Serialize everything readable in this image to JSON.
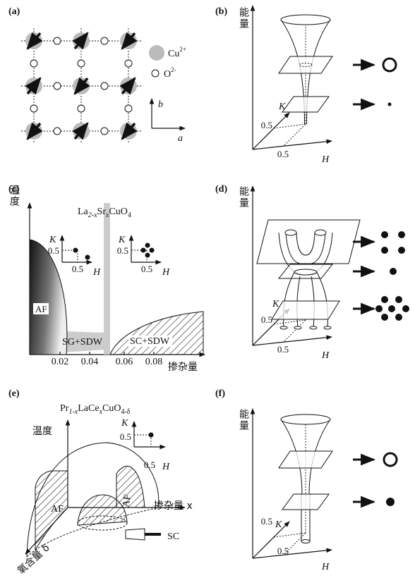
{
  "panels": {
    "a": {
      "label": "(a)",
      "cu": [
        "Cu",
        "2+"
      ],
      "o": [
        "O",
        "2-"
      ],
      "axis_b": "b",
      "axis_a": "a"
    },
    "b": {
      "label": "(b)",
      "energy": "能量",
      "k": "K",
      "k_tick": "0.5",
      "h_tick": "0.5",
      "h": "H"
    },
    "c": {
      "label": "(c)",
      "y_axis": "温度",
      "formula": [
        "La",
        "2-x",
        "Sr",
        "x",
        "CuO",
        "4"
      ],
      "insets": [
        {
          "k": "K",
          "k_tick": "0.5",
          "h_tick": "0.5",
          "h": "H"
        },
        {
          "k": "K",
          "k_tick": "0.5",
          "h_tick": "0.5",
          "h": "H"
        }
      ],
      "regions": [
        "AF",
        "SG+SDW",
        "SC+SDW"
      ],
      "x_ticks": [
        "0.02",
        "0.04",
        "0.06",
        "0.08"
      ],
      "x_axis": "掺杂量"
    },
    "d": {
      "label": "(d)",
      "energy": "能量",
      "k": "K",
      "k_tick": "0.5",
      "h_tick": "0.5",
      "h": "H"
    },
    "e": {
      "label": "(e)",
      "formula": [
        "Pr",
        "1-x",
        "LaCe",
        "x",
        "CuO",
        "4-δ"
      ],
      "y_axis": "温度",
      "inset": {
        "k": "K",
        "k_tick": "0.5",
        "h_tick": "0.5",
        "h": "H"
      },
      "regions": [
        "AF",
        "AF"
      ],
      "x_axis": "掺杂量 x",
      "sc": "SC",
      "z_axis": "氧含量 δ"
    },
    "f": {
      "label": "(f)",
      "energy": "能量",
      "k": "K",
      "k_tick": "0.5",
      "h_tick": "0.5",
      "h": "H"
    }
  }
}
